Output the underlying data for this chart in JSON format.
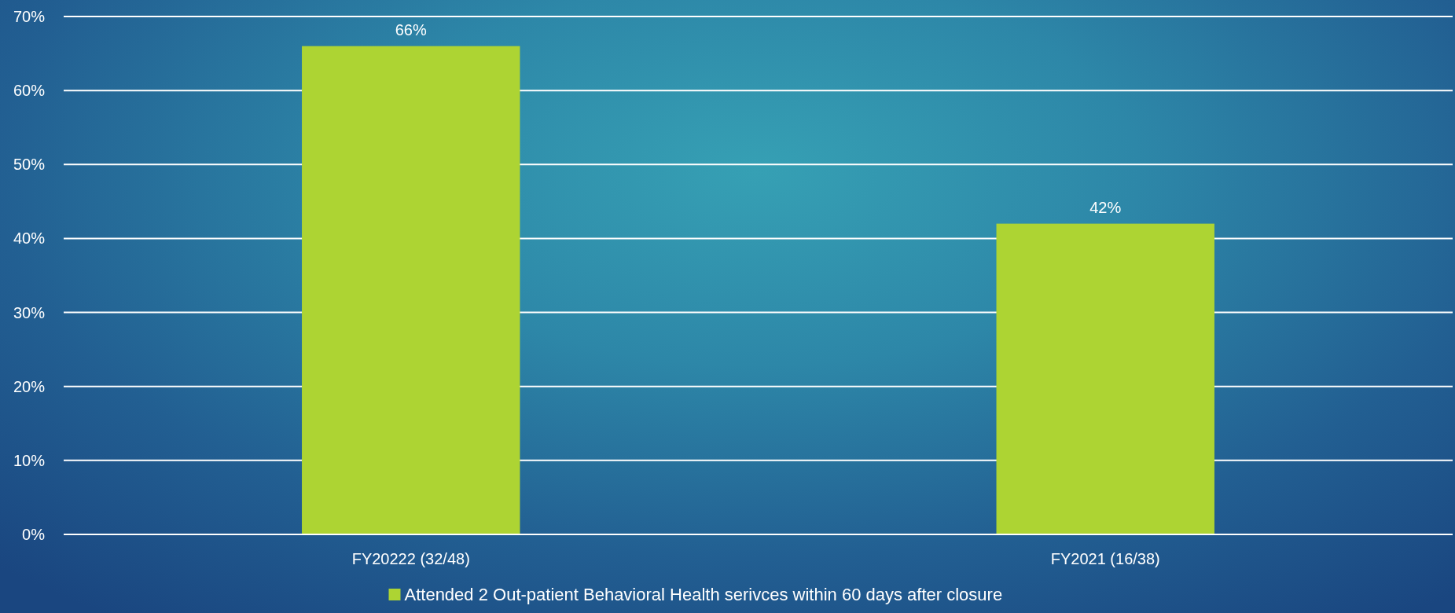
{
  "chart_data": {
    "type": "bar",
    "categories": [
      "FY20222 (32/48)",
      "FY2021 (16/38)"
    ],
    "series": [
      {
        "name": "Attended 2 Out-patient Behavioral Health serivces within 60 days after closure",
        "color": "#add433",
        "values": [
          66,
          42
        ],
        "value_labels": [
          "66%",
          "42%"
        ]
      }
    ],
    "ylim": [
      0,
      70
    ],
    "yticks": [
      {
        "value": 0,
        "label": "0%"
      },
      {
        "value": 10,
        "label": "10%"
      },
      {
        "value": 20,
        "label": "20%"
      },
      {
        "value": 30,
        "label": "30%"
      },
      {
        "value": 40,
        "label": "40%"
      },
      {
        "value": 50,
        "label": "50%"
      },
      {
        "value": 60,
        "label": "60%"
      },
      {
        "value": 70,
        "label": "70%"
      }
    ],
    "grid": "y",
    "legend": "bottom"
  }
}
